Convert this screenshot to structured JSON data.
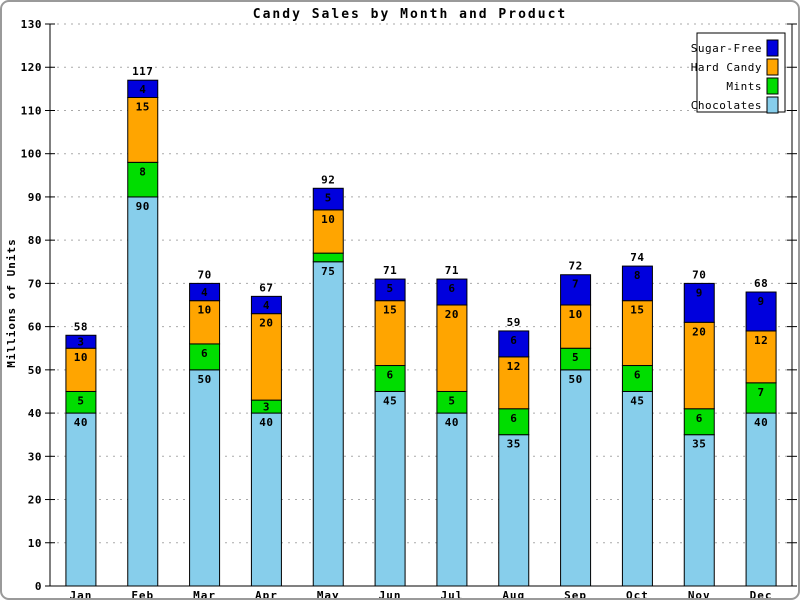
{
  "chart_data": {
    "type": "bar",
    "stacked": true,
    "title": "Candy Sales by Month and Product",
    "ylabel": "Millions of Units",
    "ylim": [
      0,
      130
    ],
    "ytick_step": 10,
    "ytick_labels": [
      "0",
      "10",
      "20",
      "30",
      "40",
      "50",
      "60",
      "70",
      "80",
      "90",
      "100",
      "110",
      "120",
      "130"
    ],
    "categories": [
      "Jan",
      "Feb",
      "Mar",
      "Apr",
      "May",
      "Jun",
      "Jul",
      "Aug",
      "Sep",
      "Oct",
      "Nov",
      "Dec"
    ],
    "series": [
      {
        "name": "Chocolates",
        "color": "#87CEEB",
        "values": [
          40,
          90,
          50,
          40,
          75,
          45,
          40,
          35,
          50,
          45,
          35,
          40
        ]
      },
      {
        "name": "Mints",
        "color": "#00DD00",
        "values": [
          5,
          8,
          6,
          3,
          2,
          6,
          5,
          6,
          5,
          6,
          6,
          7
        ]
      },
      {
        "name": "Hard Candy",
        "color": "#FFA500",
        "values": [
          10,
          15,
          10,
          20,
          10,
          15,
          20,
          12,
          10,
          15,
          20,
          12
        ]
      },
      {
        "name": "Sugar-Free",
        "color": "#0000DD",
        "values": [
          3,
          4,
          4,
          4,
          5,
          5,
          6,
          6,
          7,
          8,
          9,
          9
        ]
      }
    ],
    "totals": [
      58,
      117,
      70,
      67,
      92,
      71,
      71,
      59,
      72,
      74,
      70,
      68
    ],
    "legend": {
      "position": "top-right",
      "entries": [
        "Sugar-Free",
        "Hard Candy",
        "Mints",
        "Chocolates"
      ]
    },
    "grid": {
      "horizontal": "dotted",
      "vertical": "none"
    },
    "colors": {
      "grid": "#AAAAAA",
      "axis": "#000000",
      "bar_outline": "#000000",
      "legend_bg": "#FFFFFF",
      "frame_border": "#9A9A9A",
      "background": "#FFFFFF"
    }
  }
}
